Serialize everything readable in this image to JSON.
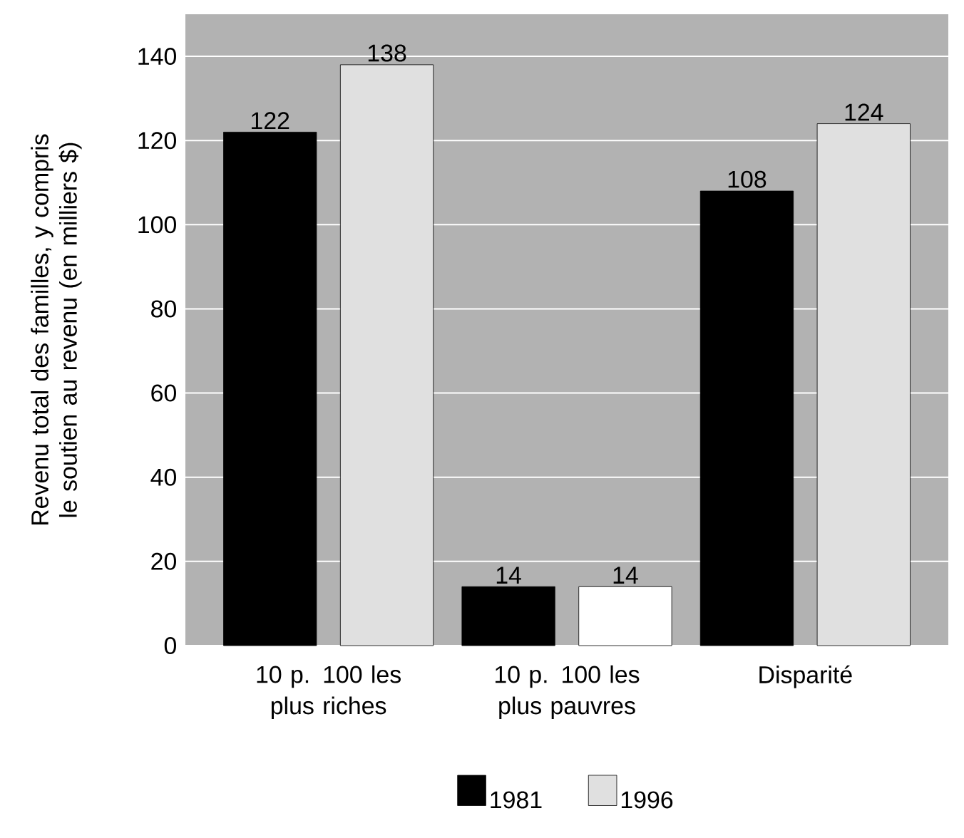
{
  "chart_data": {
    "type": "bar",
    "ylabel": "Revenu total des familles, y compris le soutien au revenu (en milliers $)",
    "categories": [
      "10 p. 100 les plus riches",
      "10 p. 100 les plus pauvres",
      "Disparité"
    ],
    "series": [
      {
        "name": "1981",
        "color": "#000000",
        "values": [
          122,
          14,
          108
        ]
      },
      {
        "name": "1996",
        "color": "#e0e0e0",
        "colors": [
          "#e0e0e0",
          "#ffffff",
          "#e0e0e0"
        ],
        "values": [
          138,
          14,
          124
        ]
      }
    ],
    "ylim": [
      0,
      150
    ],
    "yticks": [
      0,
      20,
      40,
      60,
      80,
      100,
      120,
      140
    ],
    "grid": "y",
    "legend": "bottom",
    "data_labels": true
  }
}
